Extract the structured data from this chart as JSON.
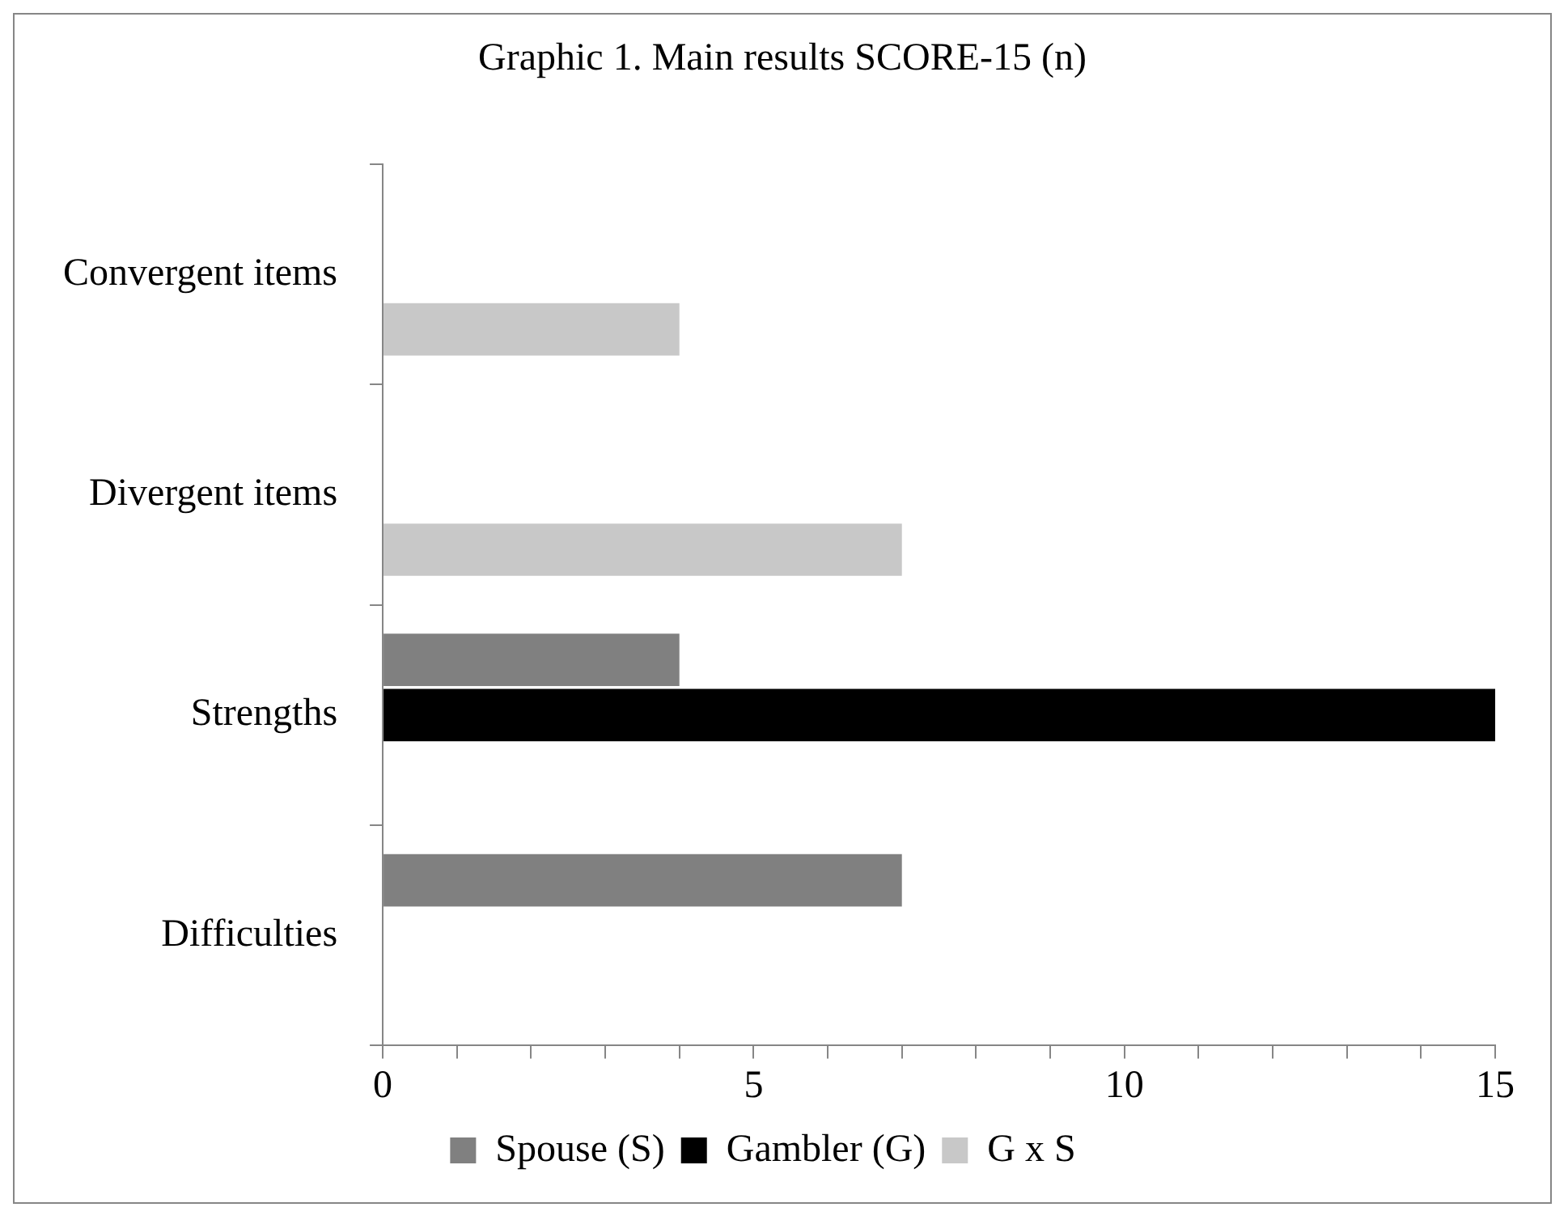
{
  "chart_data": {
    "type": "bar",
    "orientation": "horizontal",
    "title": "Graphic 1. Main results SCORE-15 (n)",
    "categories": [
      "Convergent items",
      "Divergent items",
      "Strengths",
      "Difficulties"
    ],
    "series": [
      {
        "name": "Spouse (S)",
        "color": "#808080",
        "values": [
          null,
          null,
          4,
          7
        ]
      },
      {
        "name": "Gambler (G)",
        "color": "#000000",
        "values": [
          null,
          null,
          15,
          null
        ]
      },
      {
        "name": "G x S",
        "color": "#c8c8c8",
        "values": [
          4,
          7,
          null,
          null
        ]
      }
    ],
    "xlim": [
      0,
      15
    ],
    "xticks": [
      0,
      {
        "value": 1,
        "label": null
      },
      {
        "value": 2,
        "label": null
      },
      {
        "value": 3,
        "label": null
      },
      {
        "value": 4,
        "label": null
      },
      5,
      {
        "value": 6,
        "label": null
      },
      {
        "value": 7,
        "label": null
      },
      {
        "value": 8,
        "label": null
      },
      {
        "value": 9,
        "label": null
      },
      10,
      {
        "value": 11,
        "label": null
      },
      {
        "value": 12,
        "label": null
      },
      {
        "value": 13,
        "label": null
      },
      {
        "value": 14,
        "label": null
      },
      15
    ],
    "grid": false,
    "legend": "bottom"
  }
}
